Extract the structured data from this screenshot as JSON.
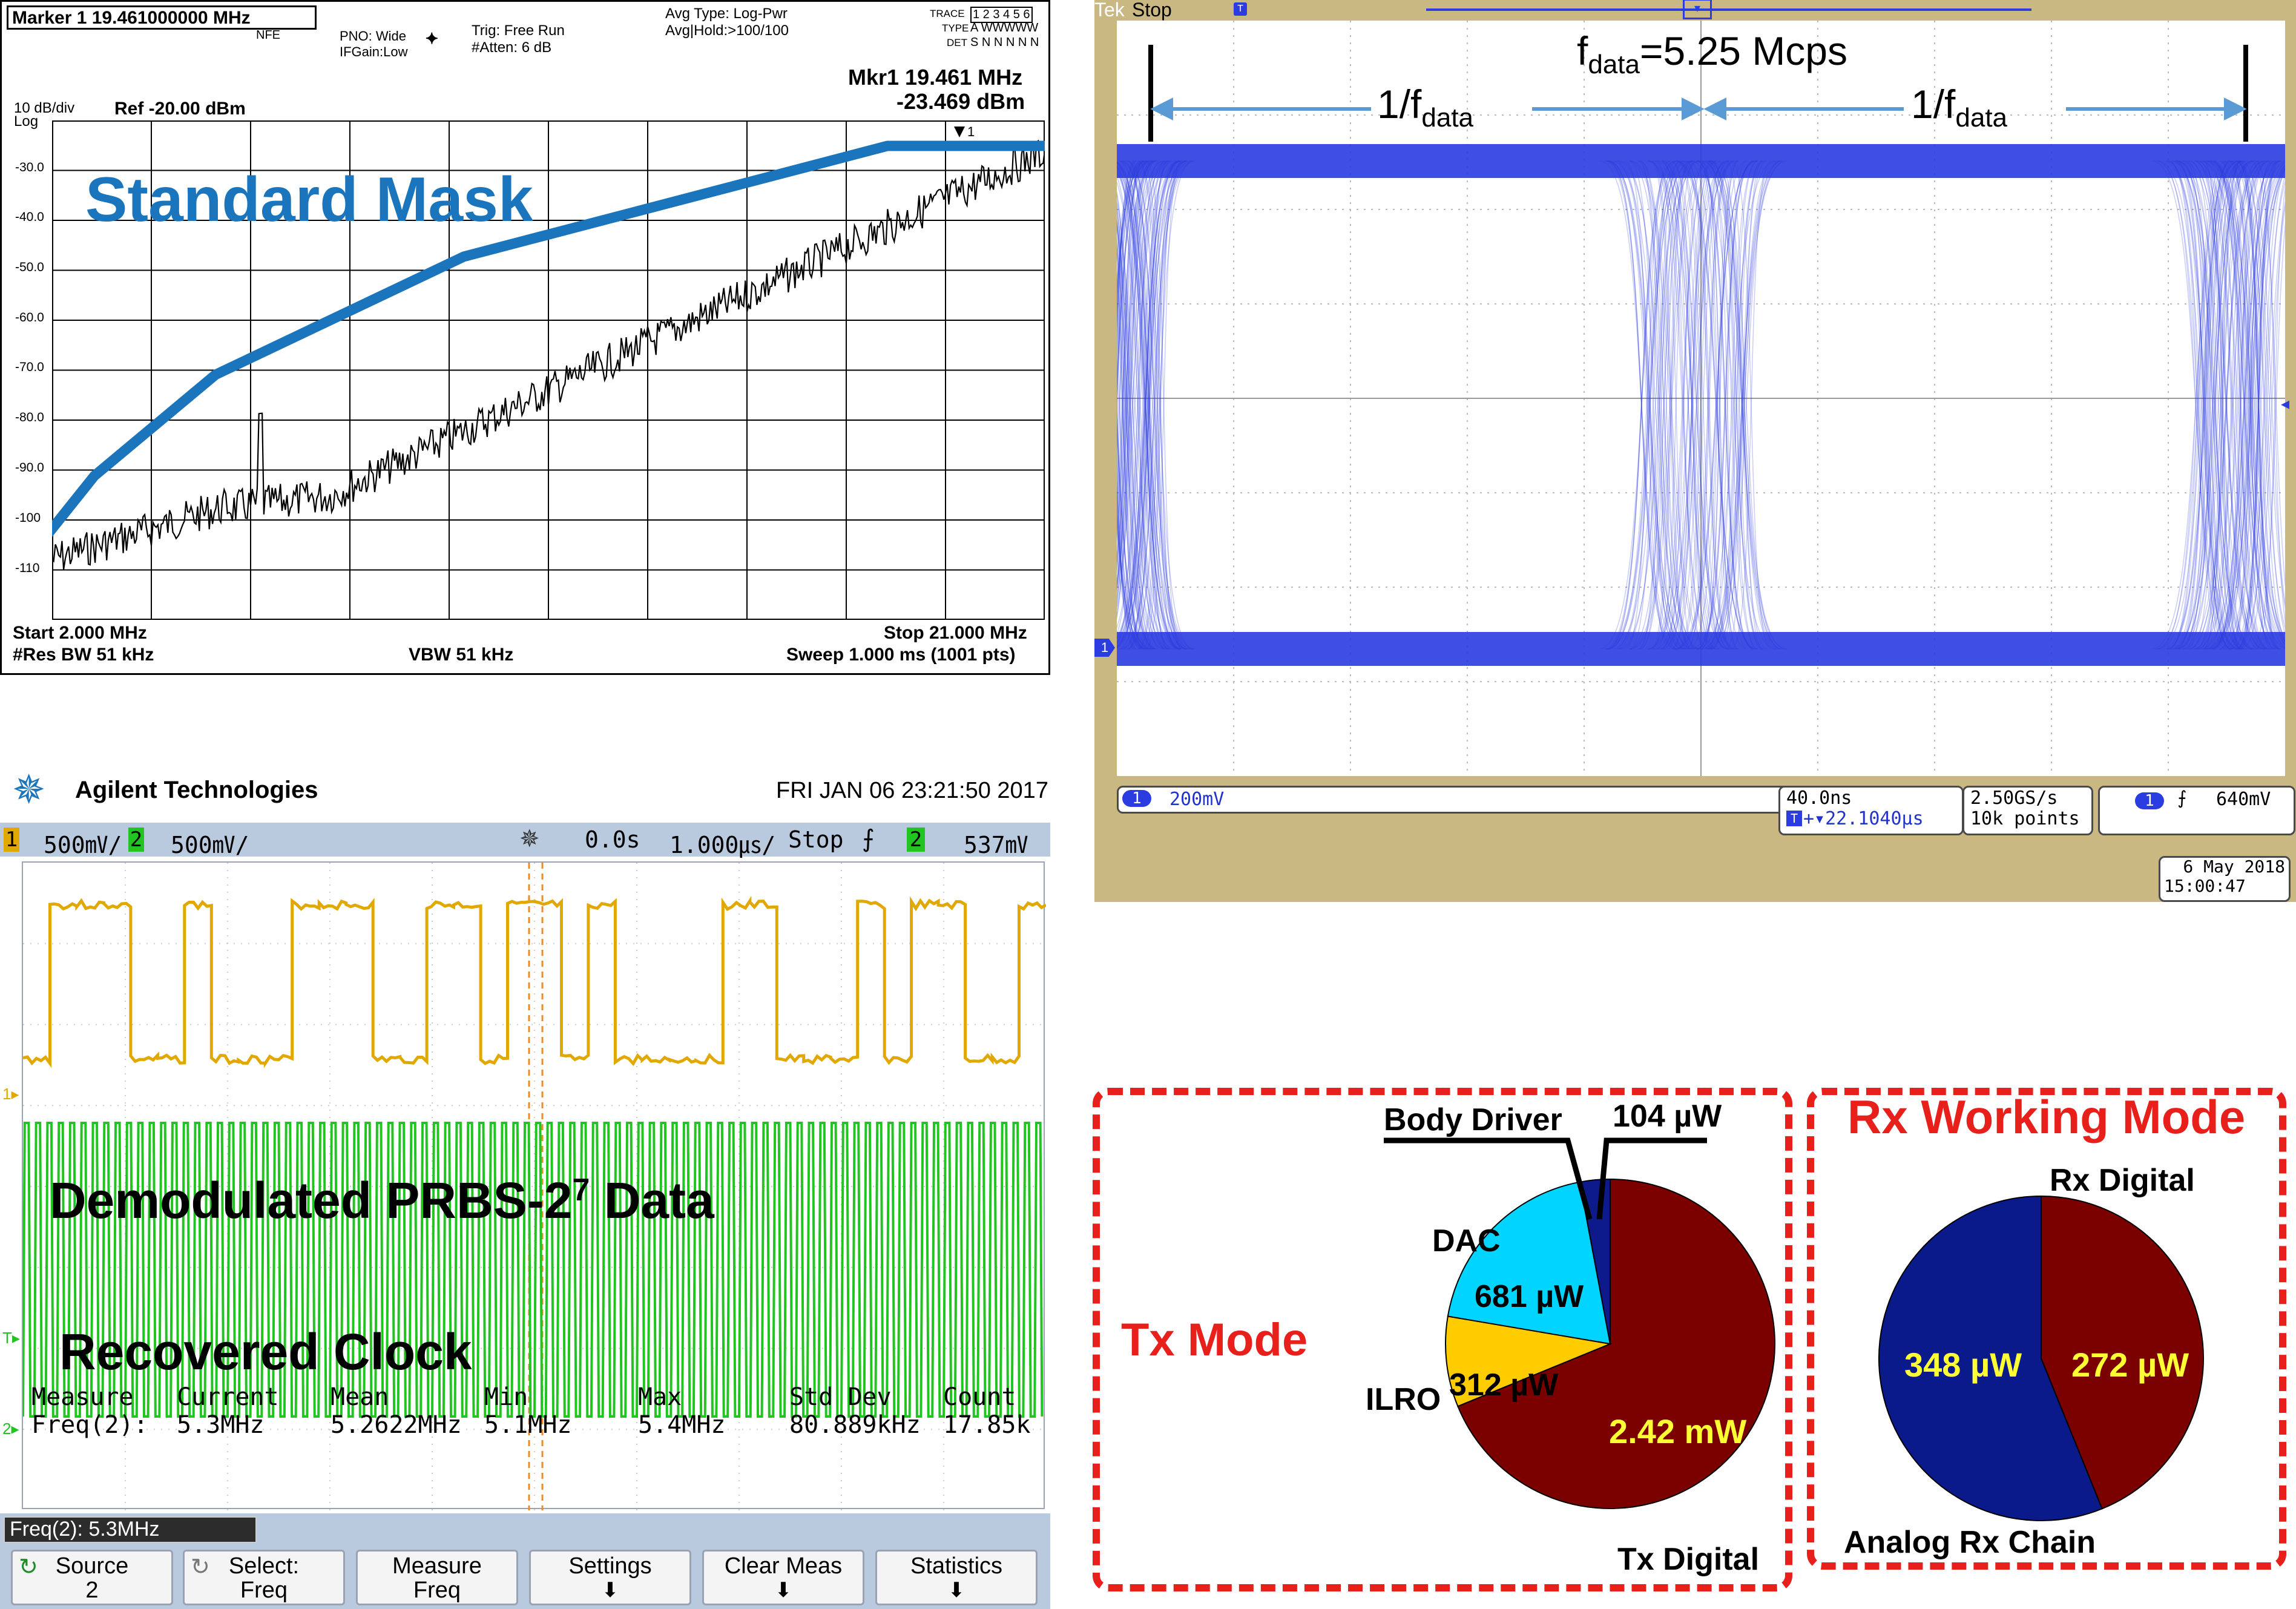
{
  "spectrum_analyzer": {
    "marker_entry": "Marker 1 19.461000000 MHz",
    "nfe": "NFE",
    "pno": "PNO: Wide",
    "ifgain": "IFGain:Low",
    "trig": "Trig: Free Run",
    "atten": "#Atten: 6 dB",
    "avg_type": "Avg Type: Log-Pwr",
    "avg_hold": "Avg|Hold:>100/100",
    "trace_label": "TRACE",
    "trace_value": "1 2 3 4 5 6",
    "type_label": "TYPE",
    "type_value": "A WWWWW",
    "det_label": "DET",
    "det_value": "S N N N N N",
    "mkr_label": "Mkr1 19.461 MHz",
    "mkr_value": "-23.469 dBm",
    "scale": "10 dB/div",
    "log": "Log",
    "ref": "Ref -20.00 dBm",
    "y_ticks": [
      "-30.0",
      "-40.0",
      "-50.0",
      "-60.0",
      "-70.0",
      "-80.0",
      "-90.0",
      "-100",
      "-110"
    ],
    "start": "Start 2.000 MHz",
    "stop": "Stop 21.000 MHz",
    "rbw": "#Res BW 51 kHz",
    "vbw": "VBW 51 kHz",
    "sweep": "Sweep  1.000 ms (1001 pts)",
    "mask_label": "Standard Mask",
    "mask_color": "#1b75bc"
  },
  "eye_scope": {
    "status": "Stop",
    "brand_fragment": "Tek",
    "title": "f",
    "title_sub": "data",
    "title_rest": "=5.25 Mcps",
    "period_label": "1/f",
    "period_sub": "data",
    "ch1_scale": "200mV",
    "timebase": "40.0ns",
    "delay": "+▾22.1040µs",
    "sample_rate": "2.50GS/s",
    "record": "10k points",
    "trigger_level": "640mV",
    "date": "6 May 2018",
    "time": "15:00:47",
    "trace_color": "#2b3ce0"
  },
  "agilent_scope": {
    "brand": "Agilent Technologies",
    "datetime": "FRI JAN 06 23:21:50 2017",
    "ch1_num": "1",
    "ch1_scale": "500㎷/",
    "ch2_num": "2",
    "ch2_scale": "500㎷/",
    "delay": "0.0s",
    "timebase": "1.000㎲/",
    "run_state": "Stop",
    "trig_ch": "2",
    "trig_level": "537㎷",
    "data_label": "Demodulated PRBS-2",
    "data_exp": "7",
    "data_label_end": " Data",
    "clock_label": "Recovered Clock",
    "measure_headers": [
      "Measure",
      "Current",
      "Mean",
      "Min",
      "Max",
      "Std Dev",
      "Count"
    ],
    "measure_row": [
      "Freq(2):",
      "5.3MHz",
      "5.2622MHz",
      "5.1MHz",
      "5.4MHz",
      "80.889kHz",
      "17.85k"
    ],
    "freq_readout": "Freq(2): 5.3MHz",
    "softkeys": [
      {
        "line1": "Source",
        "line2": "2"
      },
      {
        "line1": "Select:",
        "line2": "Freq"
      },
      {
        "line1": "Measure",
        "line2": "Freq"
      },
      {
        "line1": "Settings",
        "line2": "🠫"
      },
      {
        "line1": "Clear Meas",
        "line2": "🠫"
      },
      {
        "line1": "Statistics",
        "line2": "🠫"
      }
    ],
    "ch1_color": "#e0a800",
    "ch2_color": "#22c422"
  },
  "power": {
    "tx_title": "Tx Mode",
    "rx_title": "Rx Working Mode",
    "tx_pie": [
      {
        "name": "Tx Digital",
        "value": "2.42 mW",
        "uW": 2420,
        "color": "#7b0000"
      },
      {
        "name": "ILRO",
        "value": "312 µW",
        "uW": 312,
        "color": "#ffcc00"
      },
      {
        "name": "DAC",
        "value": "681 µW",
        "uW": 681,
        "color": "#00d4ff"
      },
      {
        "name": "Body Driver",
        "value": "104 µW",
        "uW": 104,
        "color": "#0d1a8c"
      }
    ],
    "rx_pie": [
      {
        "name": "Rx Digital",
        "value": "272 µW",
        "uW": 272,
        "color": "#7b0000"
      },
      {
        "name": "Analog Rx Chain",
        "value": "348 µW",
        "uW": 348,
        "color": "#0a1a8a"
      }
    ],
    "frame_color": "#e8201c"
  }
}
